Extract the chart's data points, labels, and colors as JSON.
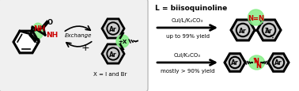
{
  "fig_width": 3.78,
  "fig_height": 1.16,
  "dpi": 100,
  "bg_color": "#ffffff",
  "box_bg": "#f2f2f2",
  "box_edge": "#aaaaaa",
  "green_highlight": "#88ee88",
  "red_color": "#cc0000",
  "black": "#000000",
  "gray_fill": "#cccccc",
  "title_text": "L = biisoquinoline",
  "reaction1_reagent": "CuI/L/K₂CO₃",
  "reaction1_yield": "up to 99% yield",
  "reaction2_reagent": "CuI/K₂CO₃",
  "reaction2_yield": "mostly > 90% yield",
  "exchange_text": "Exchange",
  "xeq_text": "X = I and Br",
  "plus_text": "+",
  "ar_text": "Ar"
}
